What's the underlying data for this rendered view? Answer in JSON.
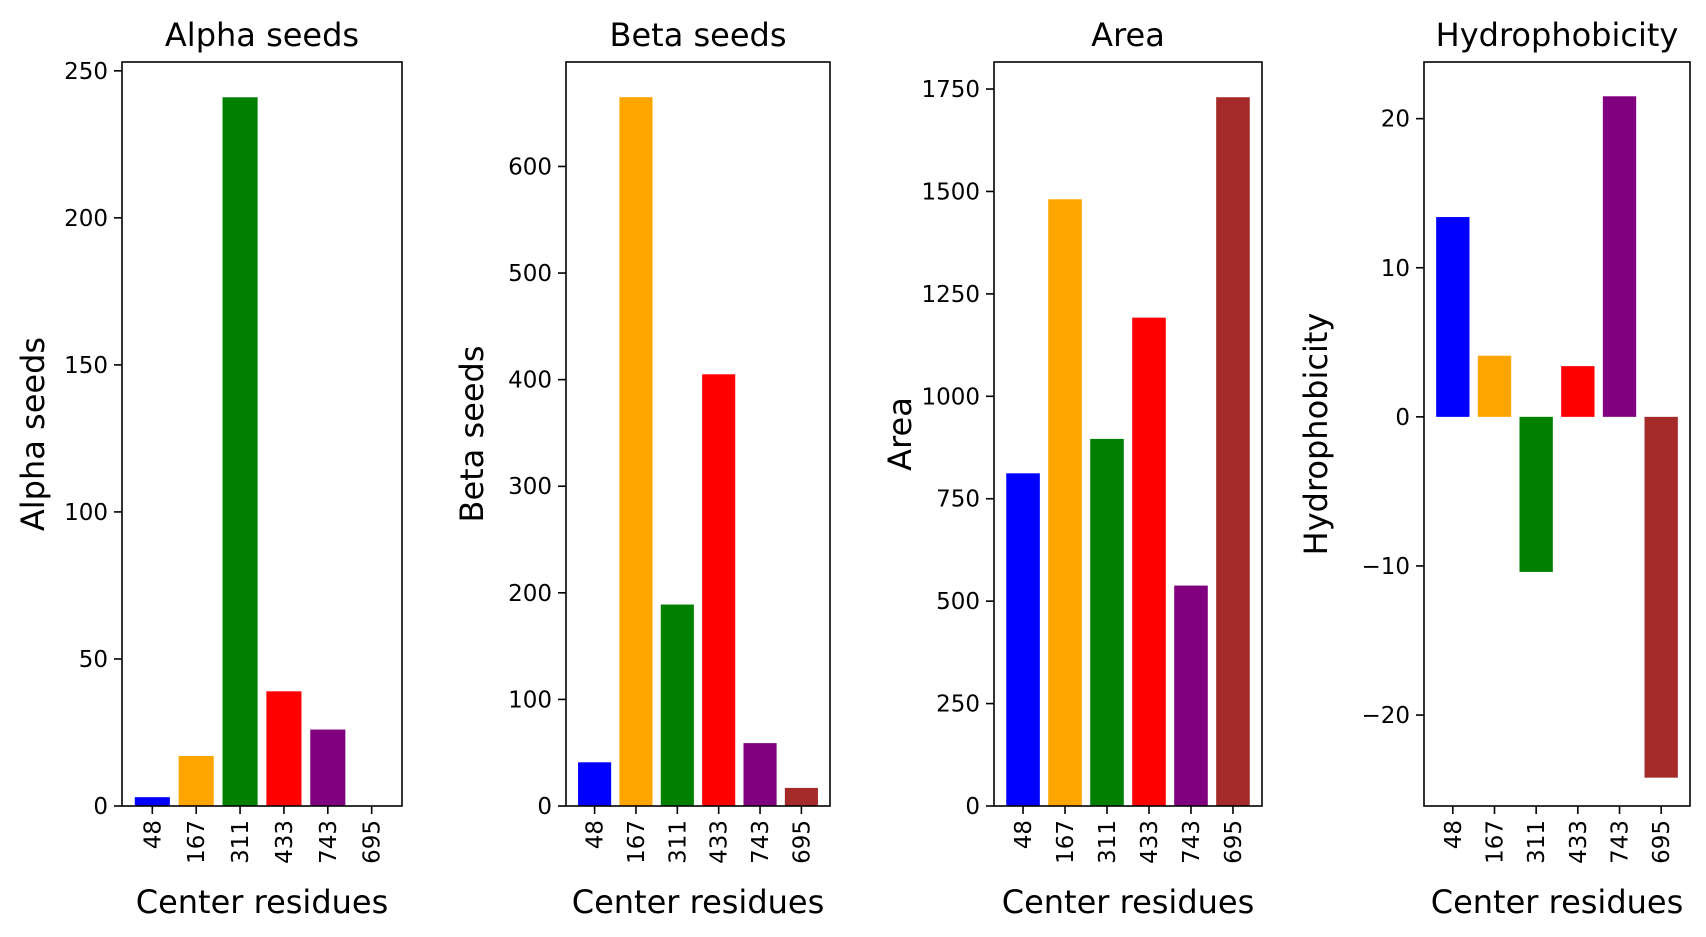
{
  "chart_data": [
    {
      "type": "bar",
      "title": "Alpha seeds",
      "xlabel": "Center residues",
      "ylabel": "Alpha seeds",
      "categories": [
        "48",
        "167",
        "311",
        "433",
        "743",
        "695"
      ],
      "values": [
        3,
        17,
        241,
        39,
        26,
        0
      ],
      "ylim": [
        0,
        253
      ],
      "yticks": [
        0,
        50,
        100,
        150,
        200,
        250
      ],
      "colors": [
        "#0000ff",
        "#ffa500",
        "#008000",
        "#ff0000",
        "#800080",
        "#a52a2a"
      ],
      "grid": false
    },
    {
      "type": "bar",
      "title": "Beta seeds",
      "xlabel": "Center residues",
      "ylabel": "Beta seeds",
      "categories": [
        "48",
        "167",
        "311",
        "433",
        "743",
        "695"
      ],
      "values": [
        41,
        665,
        189,
        405,
        59,
        17
      ],
      "ylim": [
        0,
        698
      ],
      "yticks": [
        0,
        100,
        200,
        300,
        400,
        500,
        600
      ],
      "colors": [
        "#0000ff",
        "#ffa500",
        "#008000",
        "#ff0000",
        "#800080",
        "#a52a2a"
      ],
      "grid": false
    },
    {
      "type": "bar",
      "title": "Area",
      "xlabel": "Center residues",
      "ylabel": "Area",
      "categories": [
        "48",
        "167",
        "311",
        "433",
        "743",
        "695"
      ],
      "values": [
        812,
        1481,
        896,
        1192,
        538,
        1730
      ],
      "ylim": [
        0,
        1816
      ],
      "yticks": [
        0,
        250,
        500,
        750,
        1000,
        1250,
        1500,
        1750
      ],
      "colors": [
        "#0000ff",
        "#ffa500",
        "#008000",
        "#ff0000",
        "#800080",
        "#a52a2a"
      ],
      "grid": false
    },
    {
      "type": "bar",
      "title": "Hydrophobicity",
      "xlabel": "Center residues",
      "ylabel": "Hydrophobicity",
      "categories": [
        "48",
        "167",
        "311",
        "433",
        "743",
        "695"
      ],
      "values": [
        13.4,
        4.1,
        -10.4,
        3.4,
        21.5,
        -24.2
      ],
      "ylim": [
        -26.1,
        23.8
      ],
      "yticks": [
        -20,
        -10,
        0,
        10,
        20
      ],
      "colors": [
        "#0000ff",
        "#ffa500",
        "#008000",
        "#ff0000",
        "#800080",
        "#a52a2a"
      ],
      "grid": false
    }
  ]
}
